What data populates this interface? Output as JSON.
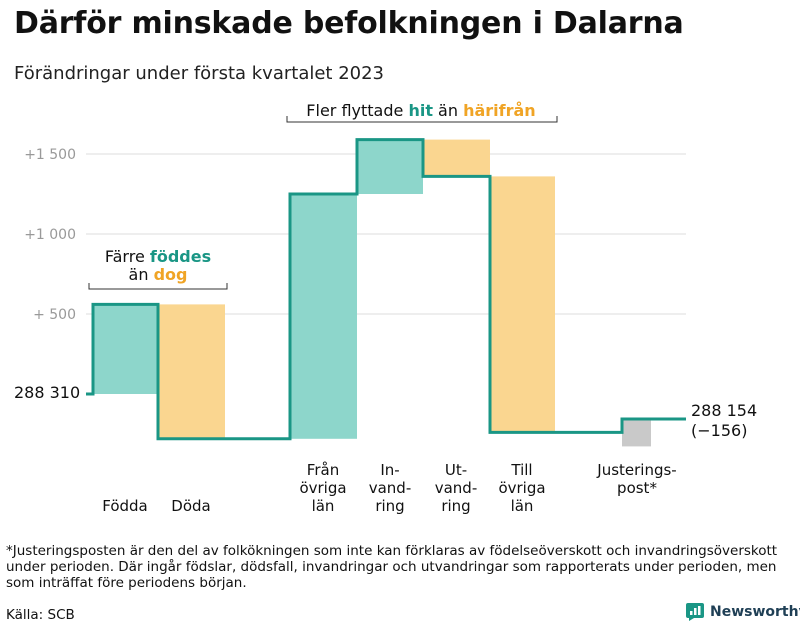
{
  "title": "Därför minskade befolkningen i Dalarna",
  "subtitle": "Förändringar under första kvartalet 2023",
  "footnote": "*Justeringsposten är den del av folkökningen som inte kan förklaras av födelseöverskott och invandringsöverskott under perioden. Där ingår födslar, dödsfall, invandringar och utvandringar som rapporterats under perioden, men som inträffat före periodens början.",
  "source": "Källa: SCB",
  "brand": "Newsworthy",
  "colors": {
    "teal": "#1a9685",
    "teal_fill": "#8dd6cb",
    "orange": "#f0a425",
    "orange_fill": "#fad690",
    "grey_fill": "#c9c9c9",
    "grid": "#dddddd"
  },
  "chart_data": {
    "type": "waterfall",
    "start_value": 288310,
    "start_label": "288 310",
    "end_value": 288154,
    "end_label": "288 154",
    "end_change_label": "(−156)",
    "steps": [
      {
        "label": [
          "Födda"
        ],
        "value": 560
      },
      {
        "label": [
          "Döda"
        ],
        "value": -840
      },
      {
        "label": [
          "Från",
          "övriga",
          "län"
        ],
        "value": 1530
      },
      {
        "label": [
          "In-",
          "vand-",
          "ring"
        ],
        "value": 340
      },
      {
        "label": [
          "Ut-",
          "vand-",
          "ring"
        ],
        "value": -230
      },
      {
        "label": [
          "Till",
          "övriga",
          "län"
        ],
        "value": -1600
      },
      {
        "label": [
          "Justerings-",
          "post*"
        ],
        "value": 84
      }
    ],
    "y_ticks": [
      {
        "value": 500,
        "label": "+ 500"
      },
      {
        "value": 1000,
        "label": "+1 000"
      },
      {
        "value": 1500,
        "label": "+1 500"
      }
    ],
    "ylim": [
      -300,
      1700
    ],
    "grid": true,
    "annotations": [
      {
        "parts": [
          {
            "text": "Fler flyttade ",
            "color": "#111111",
            "bold": false
          },
          {
            "text": "hit",
            "color": "#1a9685",
            "bold": true
          },
          {
            "text": " än ",
            "color": "#111111",
            "bold": false
          },
          {
            "text": "härifrån",
            "color": "#f0a425",
            "bold": true
          }
        ]
      },
      {
        "line1": [
          {
            "text": "Färre ",
            "color": "#111111",
            "bold": false
          },
          {
            "text": "föddes",
            "color": "#1a9685",
            "bold": true
          }
        ],
        "line2": [
          {
            "text": "än ",
            "color": "#111111",
            "bold": false
          },
          {
            "text": "dog",
            "color": "#f0a425",
            "bold": true
          }
        ]
      }
    ]
  }
}
